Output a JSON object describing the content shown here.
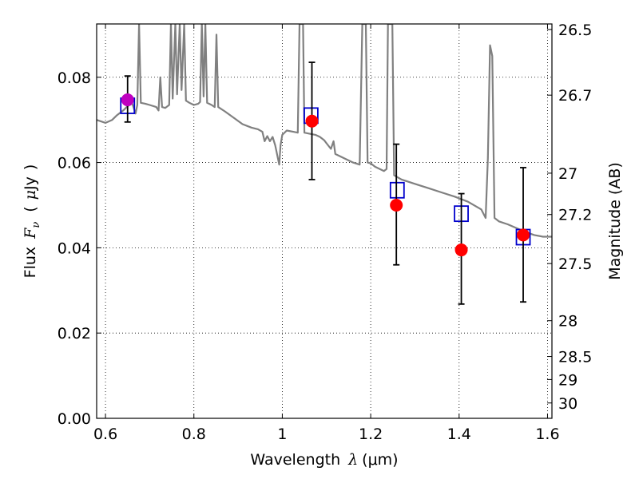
{
  "chart_data": {
    "type": "scatter",
    "xlabel": "Wavelength  λ (μm)",
    "ylabel": "Flux  F_ν  ( μJy )",
    "ylabel_parts": {
      "flux": "Flux",
      "f": "F",
      "nu": "ν",
      "open": "(",
      "mu": "μ",
      "jy": "Jy",
      "close": ")"
    },
    "xlabel_parts": {
      "word": "Wavelength",
      "lambda": "λ",
      "unit": "(μm)"
    },
    "y2label": "Magnitude (AB)",
    "xlim": [
      0.58,
      1.61
    ],
    "ylim": [
      0.0,
      0.0925
    ],
    "grid": true,
    "x_ticks": [
      {
        "v": 0.6,
        "label": "0.6"
      },
      {
        "v": 0.8,
        "label": "0.8"
      },
      {
        "v": 1.0,
        "label": "1"
      },
      {
        "v": 1.2,
        "label": "1.2"
      },
      {
        "v": 1.4,
        "label": "1.4"
      },
      {
        "v": 1.6,
        "label": "1.6"
      }
    ],
    "y_ticks": [
      {
        "v": 0.0,
        "label": "0.00"
      },
      {
        "v": 0.02,
        "label": "0.02"
      },
      {
        "v": 0.04,
        "label": "0.04"
      },
      {
        "v": 0.06,
        "label": "0.06"
      },
      {
        "v": 0.08,
        "label": "0.08"
      }
    ],
    "mag_ticks": [
      {
        "flux": 0.0912,
        "label": "26.5"
      },
      {
        "flux": 0.0758,
        "label": "26.7"
      },
      {
        "flux": 0.0575,
        "label": "27"
      },
      {
        "flux": 0.0478,
        "label": "27.2"
      },
      {
        "flux": 0.0363,
        "label": "27.5"
      },
      {
        "flux": 0.0229,
        "label": "28"
      },
      {
        "flux": 0.0145,
        "label": "28.5"
      },
      {
        "flux": 0.0091,
        "label": "29"
      },
      {
        "flux": 0.0036,
        "label": "30"
      }
    ],
    "series": [
      {
        "kind": "model_spectrum",
        "color": "#808080",
        "points": [
          [
            0.58,
            0.07
          ],
          [
            0.6,
            0.0693
          ],
          [
            0.615,
            0.07
          ],
          [
            0.625,
            0.071
          ],
          [
            0.64,
            0.0722
          ],
          [
            0.65,
            0.0732
          ],
          [
            0.66,
            0.074
          ],
          [
            0.668,
            0.0715
          ],
          [
            0.672,
            0.0735
          ],
          [
            0.676,
            0.0925
          ],
          [
            0.68,
            0.074
          ],
          [
            0.69,
            0.0738
          ],
          [
            0.7,
            0.0735
          ],
          [
            0.715,
            0.073
          ],
          [
            0.72,
            0.0722
          ],
          [
            0.724,
            0.08
          ],
          [
            0.728,
            0.073
          ],
          [
            0.735,
            0.0728
          ],
          [
            0.744,
            0.0735
          ],
          [
            0.748,
            0.0925
          ],
          [
            0.752,
            0.075
          ],
          [
            0.758,
            0.0925
          ],
          [
            0.762,
            0.076
          ],
          [
            0.768,
            0.0925
          ],
          [
            0.772,
            0.077
          ],
          [
            0.778,
            0.0925
          ],
          [
            0.782,
            0.0745
          ],
          [
            0.79,
            0.074
          ],
          [
            0.8,
            0.0735
          ],
          [
            0.81,
            0.0738
          ],
          [
            0.814,
            0.0742
          ],
          [
            0.818,
            0.0925
          ],
          [
            0.822,
            0.0755
          ],
          [
            0.826,
            0.0925
          ],
          [
            0.83,
            0.074
          ],
          [
            0.84,
            0.0735
          ],
          [
            0.847,
            0.073
          ],
          [
            0.851,
            0.09
          ],
          [
            0.855,
            0.073
          ],
          [
            0.87,
            0.072
          ],
          [
            0.89,
            0.0705
          ],
          [
            0.91,
            0.069
          ],
          [
            0.93,
            0.0682
          ],
          [
            0.945,
            0.0678
          ],
          [
            0.955,
            0.0672
          ],
          [
            0.96,
            0.065
          ],
          [
            0.966,
            0.0662
          ],
          [
            0.972,
            0.065
          ],
          [
            0.978,
            0.066
          ],
          [
            0.984,
            0.064
          ],
          [
            0.99,
            0.061
          ],
          [
            0.993,
            0.0595
          ],
          [
            0.996,
            0.064
          ],
          [
            1.0,
            0.0665
          ],
          [
            1.01,
            0.0675
          ],
          [
            1.025,
            0.0672
          ],
          [
            1.035,
            0.067
          ],
          [
            1.039,
            0.0925
          ],
          [
            1.047,
            0.0925
          ],
          [
            1.05,
            0.067
          ],
          [
            1.06,
            0.0668
          ],
          [
            1.075,
            0.0665
          ],
          [
            1.085,
            0.066
          ],
          [
            1.095,
            0.0652
          ],
          [
            1.1,
            0.0645
          ],
          [
            1.11,
            0.0632
          ],
          [
            1.116,
            0.065
          ],
          [
            1.12,
            0.062
          ],
          [
            1.14,
            0.061
          ],
          [
            1.16,
            0.06
          ],
          [
            1.175,
            0.0595
          ],
          [
            1.181,
            0.0925
          ],
          [
            1.189,
            0.0925
          ],
          [
            1.193,
            0.06
          ],
          [
            1.2,
            0.0598
          ],
          [
            1.21,
            0.059
          ],
          [
            1.23,
            0.058
          ],
          [
            1.236,
            0.0585
          ],
          [
            1.239,
            0.0925
          ],
          [
            1.249,
            0.0925
          ],
          [
            1.253,
            0.057
          ],
          [
            1.27,
            0.056
          ],
          [
            1.3,
            0.055
          ],
          [
            1.33,
            0.054
          ],
          [
            1.36,
            0.053
          ],
          [
            1.39,
            0.052
          ],
          [
            1.42,
            0.0508
          ],
          [
            1.45,
            0.049
          ],
          [
            1.46,
            0.047
          ],
          [
            1.465,
            0.061
          ],
          [
            1.47,
            0.0875
          ],
          [
            1.475,
            0.085
          ],
          [
            1.48,
            0.047
          ],
          [
            1.49,
            0.0462
          ],
          [
            1.51,
            0.0455
          ],
          [
            1.53,
            0.0446
          ],
          [
            1.55,
            0.0437
          ],
          [
            1.57,
            0.043
          ],
          [
            1.59,
            0.0426
          ],
          [
            1.61,
            0.0426
          ]
        ]
      },
      {
        "kind": "model_photometry",
        "marker": "open-square",
        "color": "#0000cc",
        "points": [
          [
            0.65,
            0.0733
          ],
          [
            1.065,
            0.071
          ],
          [
            1.26,
            0.0535
          ],
          [
            1.405,
            0.048
          ],
          [
            1.545,
            0.0425
          ]
        ]
      },
      {
        "kind": "observed_flux",
        "marker": "filled-circle",
        "color": "#ff0000",
        "error_color": "#000000",
        "points": [
          {
            "x": 1.067,
            "y": 0.0697,
            "err": [
              0.056,
              0.0835
            ]
          },
          {
            "x": 1.258,
            "y": 0.05,
            "err": [
              0.036,
              0.0643
            ]
          },
          {
            "x": 1.405,
            "y": 0.0395,
            "err": [
              0.0268,
              0.0527
            ]
          },
          {
            "x": 1.545,
            "y": 0.043,
            "err": [
              0.0273,
              0.0588
            ]
          }
        ]
      },
      {
        "kind": "observed_flux_optical",
        "marker": "filled-circle",
        "color": "#bf00bf",
        "error_color": "#000000",
        "points": [
          {
            "x": 0.65,
            "y": 0.0747,
            "err": [
              0.0695,
              0.0803
            ]
          }
        ]
      }
    ]
  }
}
